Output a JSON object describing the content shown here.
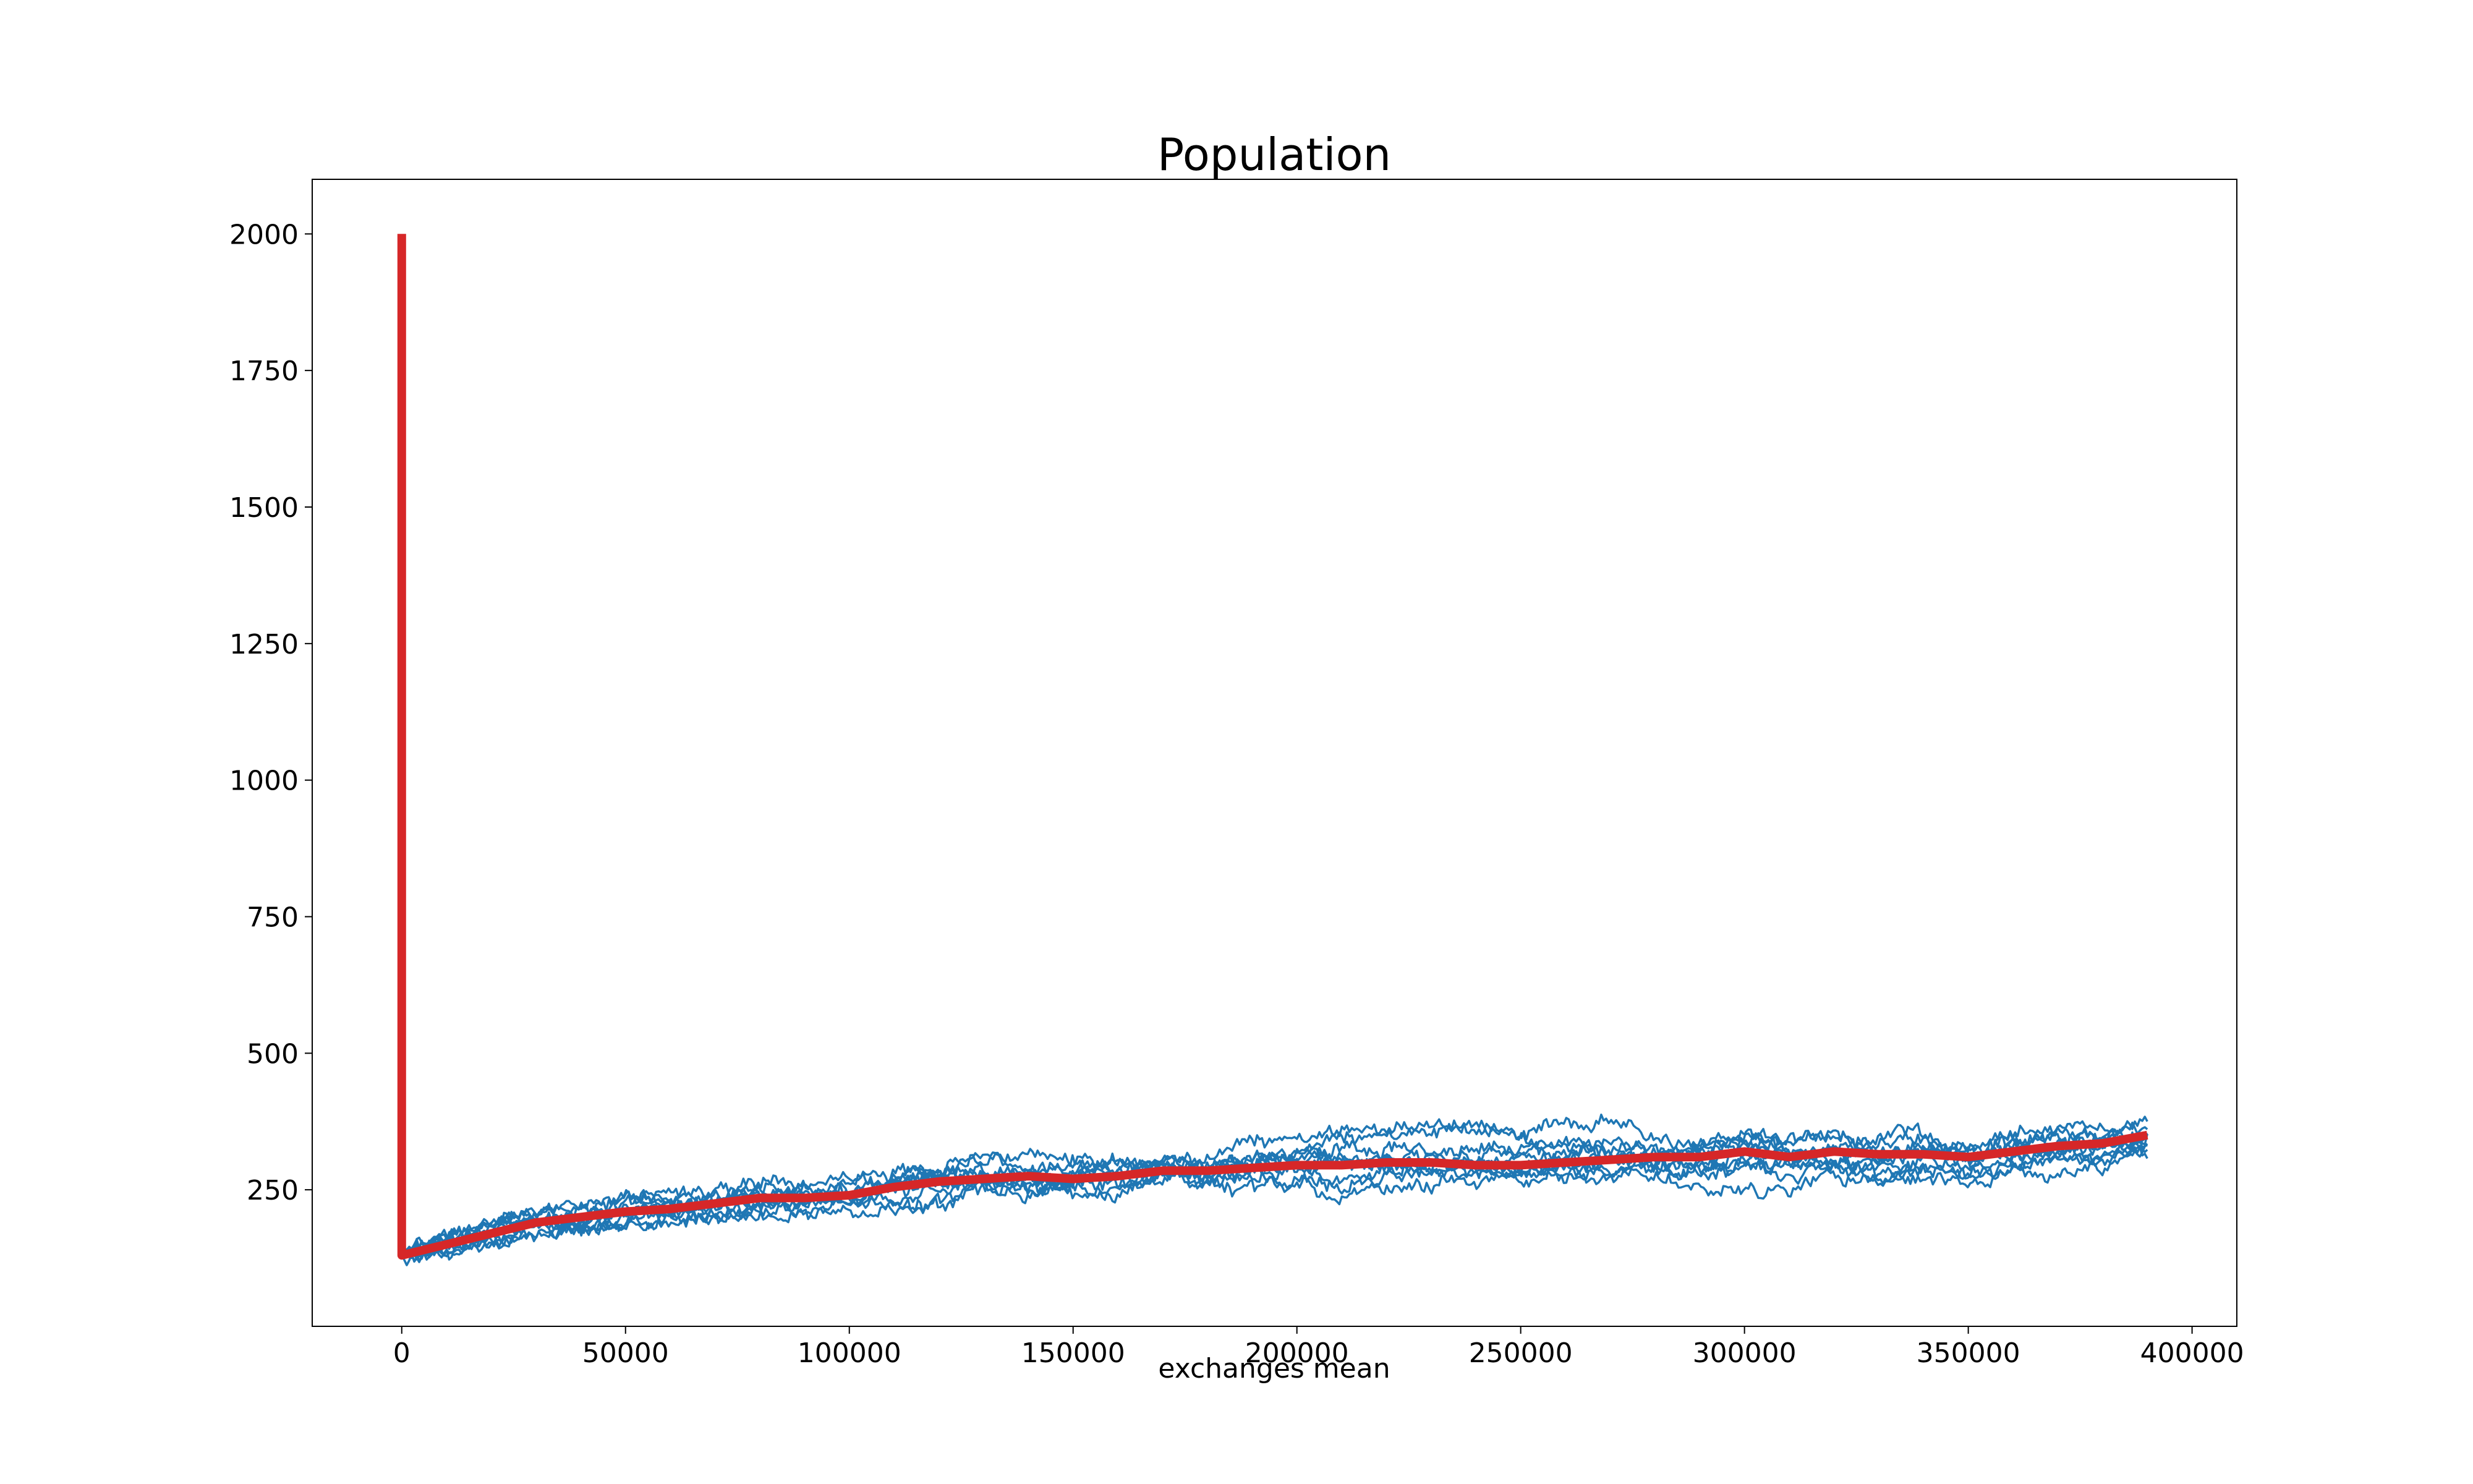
{
  "chart_data": {
    "type": "line",
    "title": "Population",
    "xlabel": "exchanges mean",
    "ylabel": "",
    "xlim": [
      -20000,
      410000
    ],
    "ylim": [
      0,
      2100
    ],
    "x_ticks": [
      0,
      50000,
      100000,
      150000,
      200000,
      250000,
      300000,
      350000,
      400000
    ],
    "y_ticks": [
      250,
      500,
      750,
      1000,
      1250,
      1500,
      1750,
      2000
    ],
    "grid": false,
    "legend": "none",
    "colors": {
      "runs": "#1f77b4",
      "mean": "#d62728",
      "axes": "#000000"
    },
    "runs_count": 10,
    "runs_x_range": [
      0,
      390000
    ],
    "runs_spread": {
      "x": [
        0,
        50000,
        100000,
        150000,
        200000,
        250000,
        300000,
        350000,
        390000
      ],
      "low": [
        110,
        150,
        180,
        210,
        230,
        240,
        240,
        200,
        250
      ],
      "high": [
        160,
        260,
        340,
        340,
        370,
        390,
        450,
        440,
        470
      ]
    },
    "mean_series": {
      "x": [
        0,
        10000,
        20000,
        30000,
        40000,
        50000,
        60000,
        70000,
        80000,
        90000,
        100000,
        110000,
        120000,
        130000,
        140000,
        150000,
        160000,
        170000,
        180000,
        190000,
        200000,
        210000,
        220000,
        230000,
        240000,
        250000,
        260000,
        270000,
        280000,
        290000,
        300000,
        310000,
        320000,
        330000,
        340000,
        350000,
        360000,
        370000,
        380000,
        390000
      ],
      "y": [
        130,
        150,
        170,
        190,
        200,
        210,
        215,
        225,
        235,
        235,
        240,
        255,
        265,
        270,
        275,
        270,
        275,
        285,
        285,
        290,
        295,
        295,
        300,
        300,
        295,
        295,
        300,
        305,
        310,
        310,
        320,
        310,
        320,
        315,
        315,
        310,
        320,
        330,
        335,
        350
      ]
    },
    "mean_initial_point": {
      "x": 0,
      "y": 2000
    }
  }
}
